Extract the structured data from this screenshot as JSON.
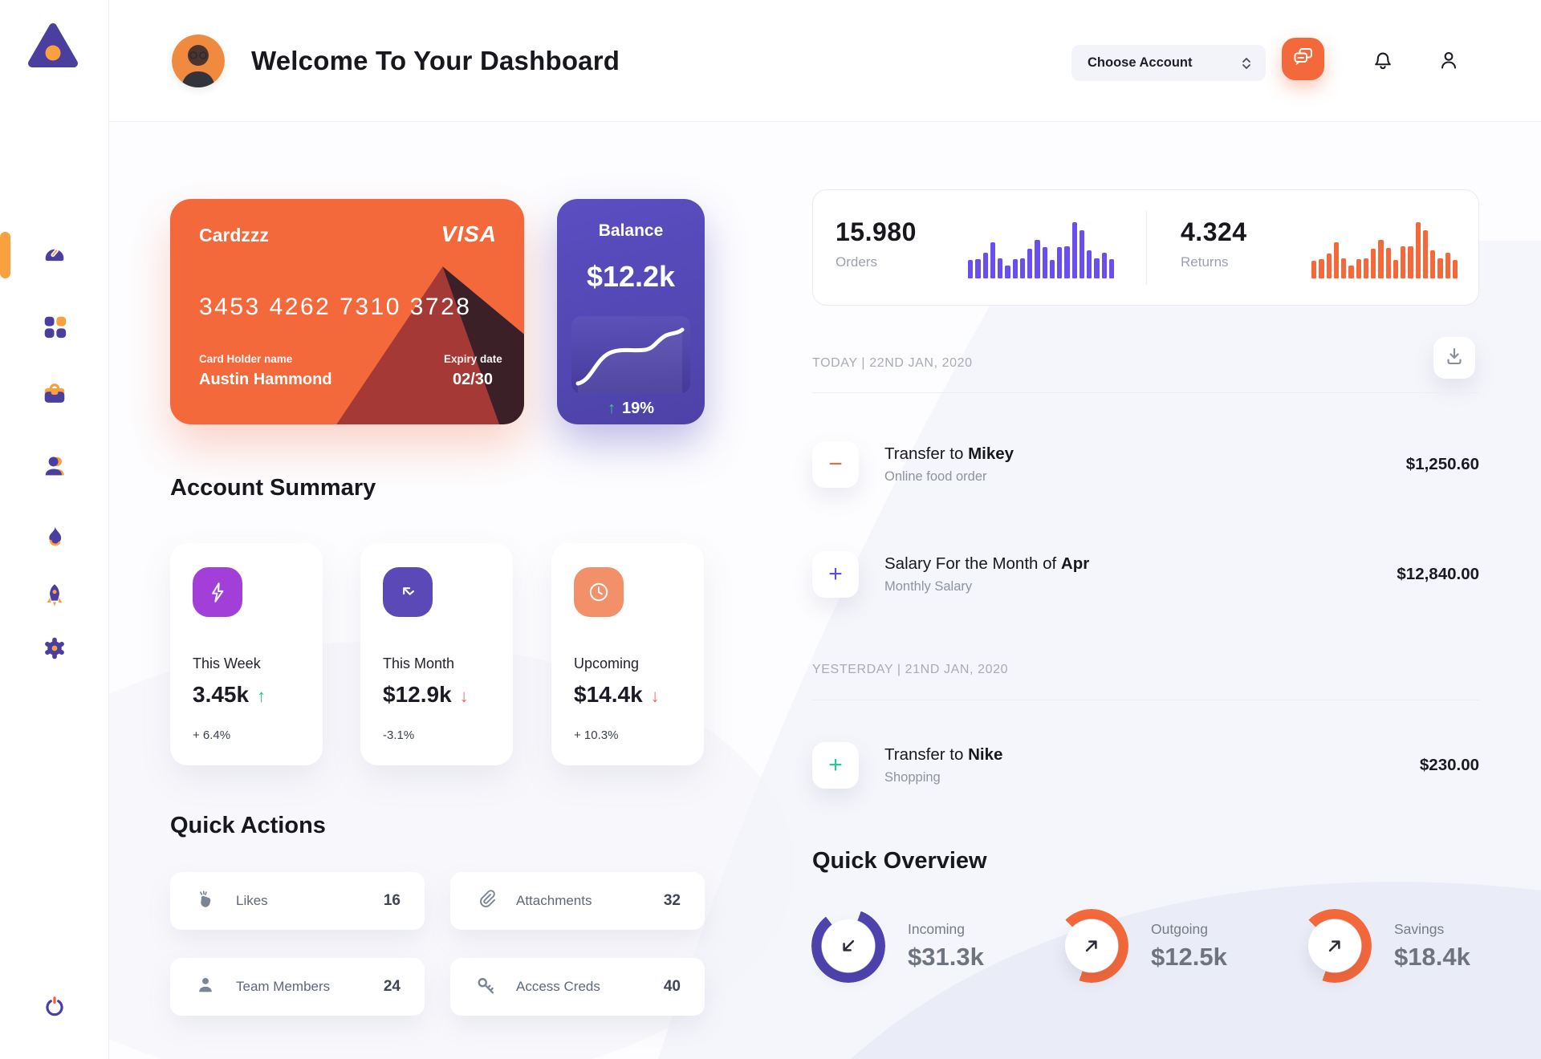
{
  "colors": {
    "orange": "#F4693C",
    "purple": "#4A3F9F",
    "violet_bar": "#6A4FF0",
    "orange_bar": "#F4683A",
    "amber": "#F9A13F",
    "green": "#1FBE77",
    "red": "#F2635F",
    "teal": "#27C79C"
  },
  "sidebar": {
    "items": [
      {
        "id": "dashboard",
        "icon": "speedometer-icon",
        "active": true
      },
      {
        "id": "apps",
        "icon": "grid-icon",
        "active": false
      },
      {
        "id": "portfolio",
        "icon": "briefcase-icon",
        "active": false
      },
      {
        "id": "contacts",
        "icon": "user-icon",
        "active": false
      },
      {
        "id": "activity",
        "icon": "flame-icon",
        "active": false
      },
      {
        "id": "boost",
        "icon": "rocket-icon",
        "active": false
      },
      {
        "id": "settings",
        "icon": "gear-icon",
        "active": false
      },
      {
        "id": "logout",
        "icon": "power-icon",
        "active": false
      }
    ]
  },
  "header": {
    "title": "Welcome To Your Dashboard",
    "account_select_label": "Choose Account"
  },
  "credit_card": {
    "name": "Cardzzz",
    "brand": "VISA",
    "number": "3453 4262 7310 3728",
    "holder_label": "Card Holder name",
    "holder": "Austin Hammond",
    "expiry_label": "Expiry date",
    "expiry": "02/30"
  },
  "balance_card": {
    "label": "Balance",
    "amount": "$12.2k",
    "change": "19%",
    "change_arrow": "↑"
  },
  "account_summary": {
    "heading": "Account Summary",
    "cards": [
      {
        "label": "This Week",
        "value": "3.45k",
        "arrow": "↑",
        "arrow_color": "#1FBE77",
        "percent": "+ 6.4%",
        "icon": "lightning-icon",
        "icon_bg": "#A23FD8"
      },
      {
        "label": "This Month",
        "value": "$12.9k",
        "arrow": "↓",
        "arrow_color": "#F2635F",
        "percent": "-3.1%",
        "icon": "trend-arrow-icon",
        "icon_bg": "#5B49B8"
      },
      {
        "label": "Upcoming",
        "value": "$14.4k",
        "arrow": "↓",
        "arrow_color": "#F2635F",
        "percent": "+ 10.3%",
        "icon": "clock-icon",
        "icon_bg": "#F2906A"
      }
    ]
  },
  "quick_actions": {
    "heading": "Quick Actions",
    "items": [
      {
        "label": "Likes",
        "count": "16",
        "icon": "clap-icon"
      },
      {
        "label": "Attachments",
        "count": "32",
        "icon": "paperclip-icon"
      },
      {
        "label": "Team Members",
        "count": "24",
        "icon": "member-icon"
      },
      {
        "label": "Access Creds",
        "count": "40",
        "icon": "key-icon"
      }
    ]
  },
  "stats": {
    "orders": {
      "value": "15.980",
      "label": "Orders"
    },
    "returns": {
      "value": "4.324",
      "label": "Returns"
    }
  },
  "chart_data": [
    {
      "type": "bar",
      "title": "Orders activity",
      "color": "#6A4FF0",
      "values": [
        32,
        34,
        44,
        62,
        35,
        22,
        34,
        35,
        52,
        66,
        54,
        32,
        54,
        55,
        97,
        84,
        49,
        35,
        45,
        33
      ]
    },
    {
      "type": "bar",
      "title": "Returns activity",
      "color": "#F4683A",
      "values": [
        30,
        33,
        43,
        62,
        35,
        22,
        33,
        35,
        52,
        67,
        53,
        32,
        55,
        55,
        97,
        83,
        48,
        35,
        45,
        32
      ]
    },
    {
      "type": "line",
      "title": "Balance trend",
      "x": [
        0,
        12,
        25,
        38,
        50,
        62,
        75,
        88,
        100
      ],
      "y": [
        10,
        14,
        34,
        48,
        52,
        52,
        57,
        70,
        78
      ]
    }
  ],
  "transactions": {
    "groups": [
      {
        "date_label": "TODAY | 22ND JAN, 2020",
        "rows": [
          {
            "title_prefix": "Transfer to ",
            "title_bold": "Mikey",
            "subtitle": "Online food order",
            "amount": "$1,250.60",
            "icon_symbol": "−",
            "icon_color": "#F4693C"
          },
          {
            "title_prefix": "Salary For the Month of ",
            "title_bold": "Apr",
            "subtitle": "Monthly Salary",
            "amount": "$12,840.00",
            "icon_symbol": "+",
            "icon_color": "#5B4FD8"
          }
        ]
      },
      {
        "date_label": "YESTERDAY | 21ND JAN, 2020",
        "rows": [
          {
            "title_prefix": "Transfer to ",
            "title_bold": "Nike",
            "subtitle": "Shopping",
            "amount": "$230.00",
            "icon_symbol": "+",
            "icon_color": "#27C79C"
          }
        ]
      }
    ]
  },
  "quick_overview": {
    "heading": "Quick Overview",
    "rings": [
      {
        "label": "Incoming",
        "value": "$31.3k",
        "color": "#4F43AE",
        "percent": 84,
        "start_deg": 20,
        "arrow": "down-left"
      },
      {
        "label": "Outgoing",
        "value": "$12.5k",
        "color": "#F4693C",
        "percent": 68,
        "start_deg": -45,
        "arrow": "up-right"
      },
      {
        "label": "Savings",
        "value": "$18.4k",
        "color": "#F4693C",
        "percent": 68,
        "start_deg": -45,
        "arrow": "up-right"
      }
    ]
  }
}
